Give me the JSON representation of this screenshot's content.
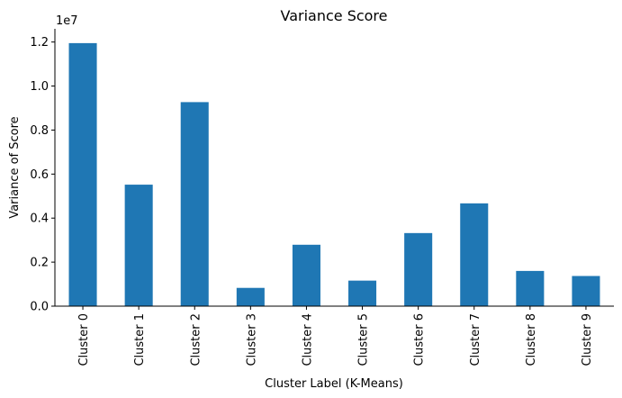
{
  "chart_data": {
    "type": "bar",
    "title": "Variance Score",
    "xlabel": "Cluster Label (K-Means)",
    "ylabel": "Variance of Score",
    "y_offset_label": "1e7",
    "categories": [
      "Cluster 0",
      "Cluster 1",
      "Cluster 2",
      "Cluster 3",
      "Cluster 4",
      "Cluster 5",
      "Cluster 6",
      "Cluster 7",
      "Cluster 8",
      "Cluster 9"
    ],
    "values": [
      11950000,
      5520000,
      9270000,
      830000,
      2790000,
      1160000,
      3320000,
      4670000,
      1600000,
      1370000
    ],
    "ylim": [
      0,
      12600000
    ],
    "yticks": [
      0,
      2000000,
      4000000,
      6000000,
      8000000,
      10000000,
      12000000
    ],
    "ytick_labels": [
      "0.0",
      "0.2",
      "0.4",
      "0.6",
      "0.8",
      "1.0",
      "1.2"
    ],
    "bar_color": "#1f77b4",
    "grid": false,
    "legend": "none"
  }
}
